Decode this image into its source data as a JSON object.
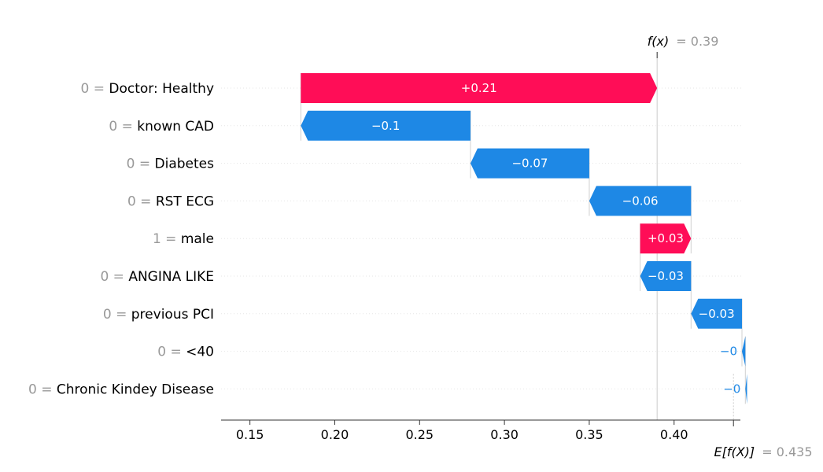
{
  "colors": {
    "positive": "#ff0d57",
    "negative": "#1e88e5",
    "gray_text": "#999999",
    "grid": "#dddddd"
  },
  "chart_data": {
    "type": "waterfall",
    "base_value": 0.435,
    "base_label": "E[f(X)]",
    "base_value_text": "= 0.435",
    "output_value": 0.39,
    "output_label": "f(x)",
    "output_value_text": "= 0.39",
    "xlim": [
      0.133,
      0.44
    ],
    "x_ticks": [
      0.15,
      0.2,
      0.25,
      0.3,
      0.35,
      0.4
    ],
    "x_tick_labels": [
      "0.15",
      "0.20",
      "0.25",
      "0.30",
      "0.35",
      "0.40"
    ],
    "features": [
      {
        "value": "0 =",
        "name": "Doctor: Healthy",
        "contribution": 0.21,
        "label": "+0.21"
      },
      {
        "value": "0 =",
        "name": "known CAD",
        "contribution": -0.1,
        "label": "−0.1"
      },
      {
        "value": "0 =",
        "name": "Diabetes",
        "contribution": -0.07,
        "label": "−0.07"
      },
      {
        "value": "0 =",
        "name": "RST ECG",
        "contribution": -0.06,
        "label": "−0.06"
      },
      {
        "value": "1 =",
        "name": "male",
        "contribution": 0.03,
        "label": "+0.03"
      },
      {
        "value": "0 =",
        "name": "ANGINA LIKE",
        "contribution": -0.03,
        "label": "−0.03"
      },
      {
        "value": "0 =",
        "name": "previous PCI",
        "contribution": -0.03,
        "label": "−0.03"
      },
      {
        "value": "0 =",
        "name": "<40",
        "contribution": -0.002,
        "label": "−0"
      },
      {
        "value": "0 =",
        "name": "Chronic Kindey Disease",
        "contribution": -0.001,
        "label": "−0"
      }
    ]
  }
}
